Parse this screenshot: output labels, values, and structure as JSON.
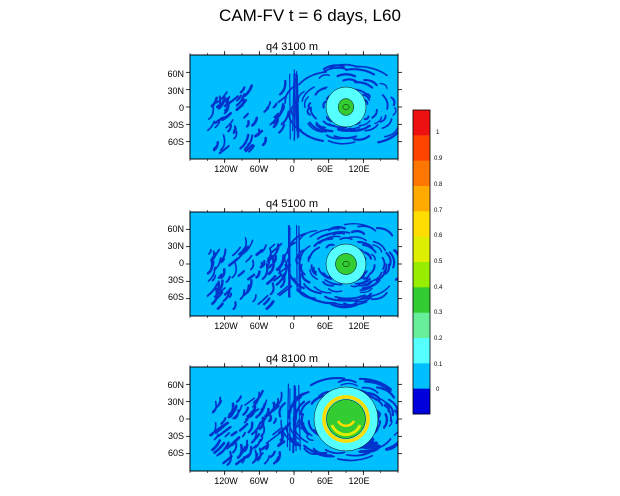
{
  "title": "CAM-FV t = 6 days, L60",
  "colors": {
    "ocean_light": "#00bfff",
    "contour_dark": "#0033cc",
    "contour_line": "#000000"
  },
  "chart_data": [
    {
      "type": "heatmap",
      "title": "q4 3100 m",
      "ytick_labels": [
        "60N",
        "30N",
        "0",
        "30S",
        "60S"
      ],
      "yticks": [
        60,
        30,
        0,
        -30,
        -60
      ],
      "xtick_labels": [
        "120W",
        "60W",
        "0",
        "60E",
        "120E"
      ],
      "xticks": [
        -120,
        -60,
        0,
        60,
        120
      ],
      "xlim": [
        -180,
        180
      ],
      "ylim": [
        -90,
        90
      ],
      "feature": {
        "lon": 90,
        "lat": 0,
        "peak": 0.4,
        "note": "small green blob in light ring"
      }
    },
    {
      "type": "heatmap",
      "title": "q4 5100 m",
      "ytick_labels": [
        "60N",
        "30N",
        "0",
        "30S",
        "60S"
      ],
      "yticks": [
        60,
        30,
        0,
        -30,
        -60
      ],
      "xtick_labels": [
        "120W",
        "60W",
        "0",
        "60E",
        "120E"
      ],
      "xticks": [
        -120,
        -60,
        0,
        60,
        120
      ],
      "xlim": [
        -180,
        180
      ],
      "ylim": [
        -90,
        90
      ],
      "feature": {
        "lon": 90,
        "lat": 0,
        "peak": 0.5,
        "note": "green disk in light ring"
      }
    },
    {
      "type": "heatmap",
      "title": "q4 8100 m",
      "ytick_labels": [
        "60N",
        "30N",
        "0",
        "30S",
        "60S"
      ],
      "yticks": [
        60,
        30,
        0,
        -30,
        -60
      ],
      "xtick_labels": [
        "120W",
        "60W",
        "0",
        "60E",
        "120E"
      ],
      "xticks": [
        -120,
        -60,
        0,
        60,
        120
      ],
      "xlim": [
        -180,
        180
      ],
      "ylim": [
        -90,
        90
      ],
      "feature": {
        "lon": 90,
        "lat": 0,
        "peak": 0.75,
        "note": "large green disk with yellow rings"
      }
    }
  ],
  "colorbar": {
    "labels": [
      "1",
      "0.9",
      "0.8",
      "0.7",
      "0.6",
      "0.5",
      "0.4",
      "0.3",
      "0.2",
      "0.1",
      "0"
    ],
    "levels": [
      1,
      0.9,
      0.8,
      0.7,
      0.6,
      0.5,
      0.4,
      0.3,
      0.2,
      0.1,
      0
    ],
    "colors": [
      "#ee1111",
      "#ff4400",
      "#ff7700",
      "#ffaa00",
      "#ffdd00",
      "#ddee00",
      "#99ee00",
      "#33cc33",
      "#66ee99",
      "#55ffff",
      "#00bfff",
      "#0000dd"
    ]
  }
}
